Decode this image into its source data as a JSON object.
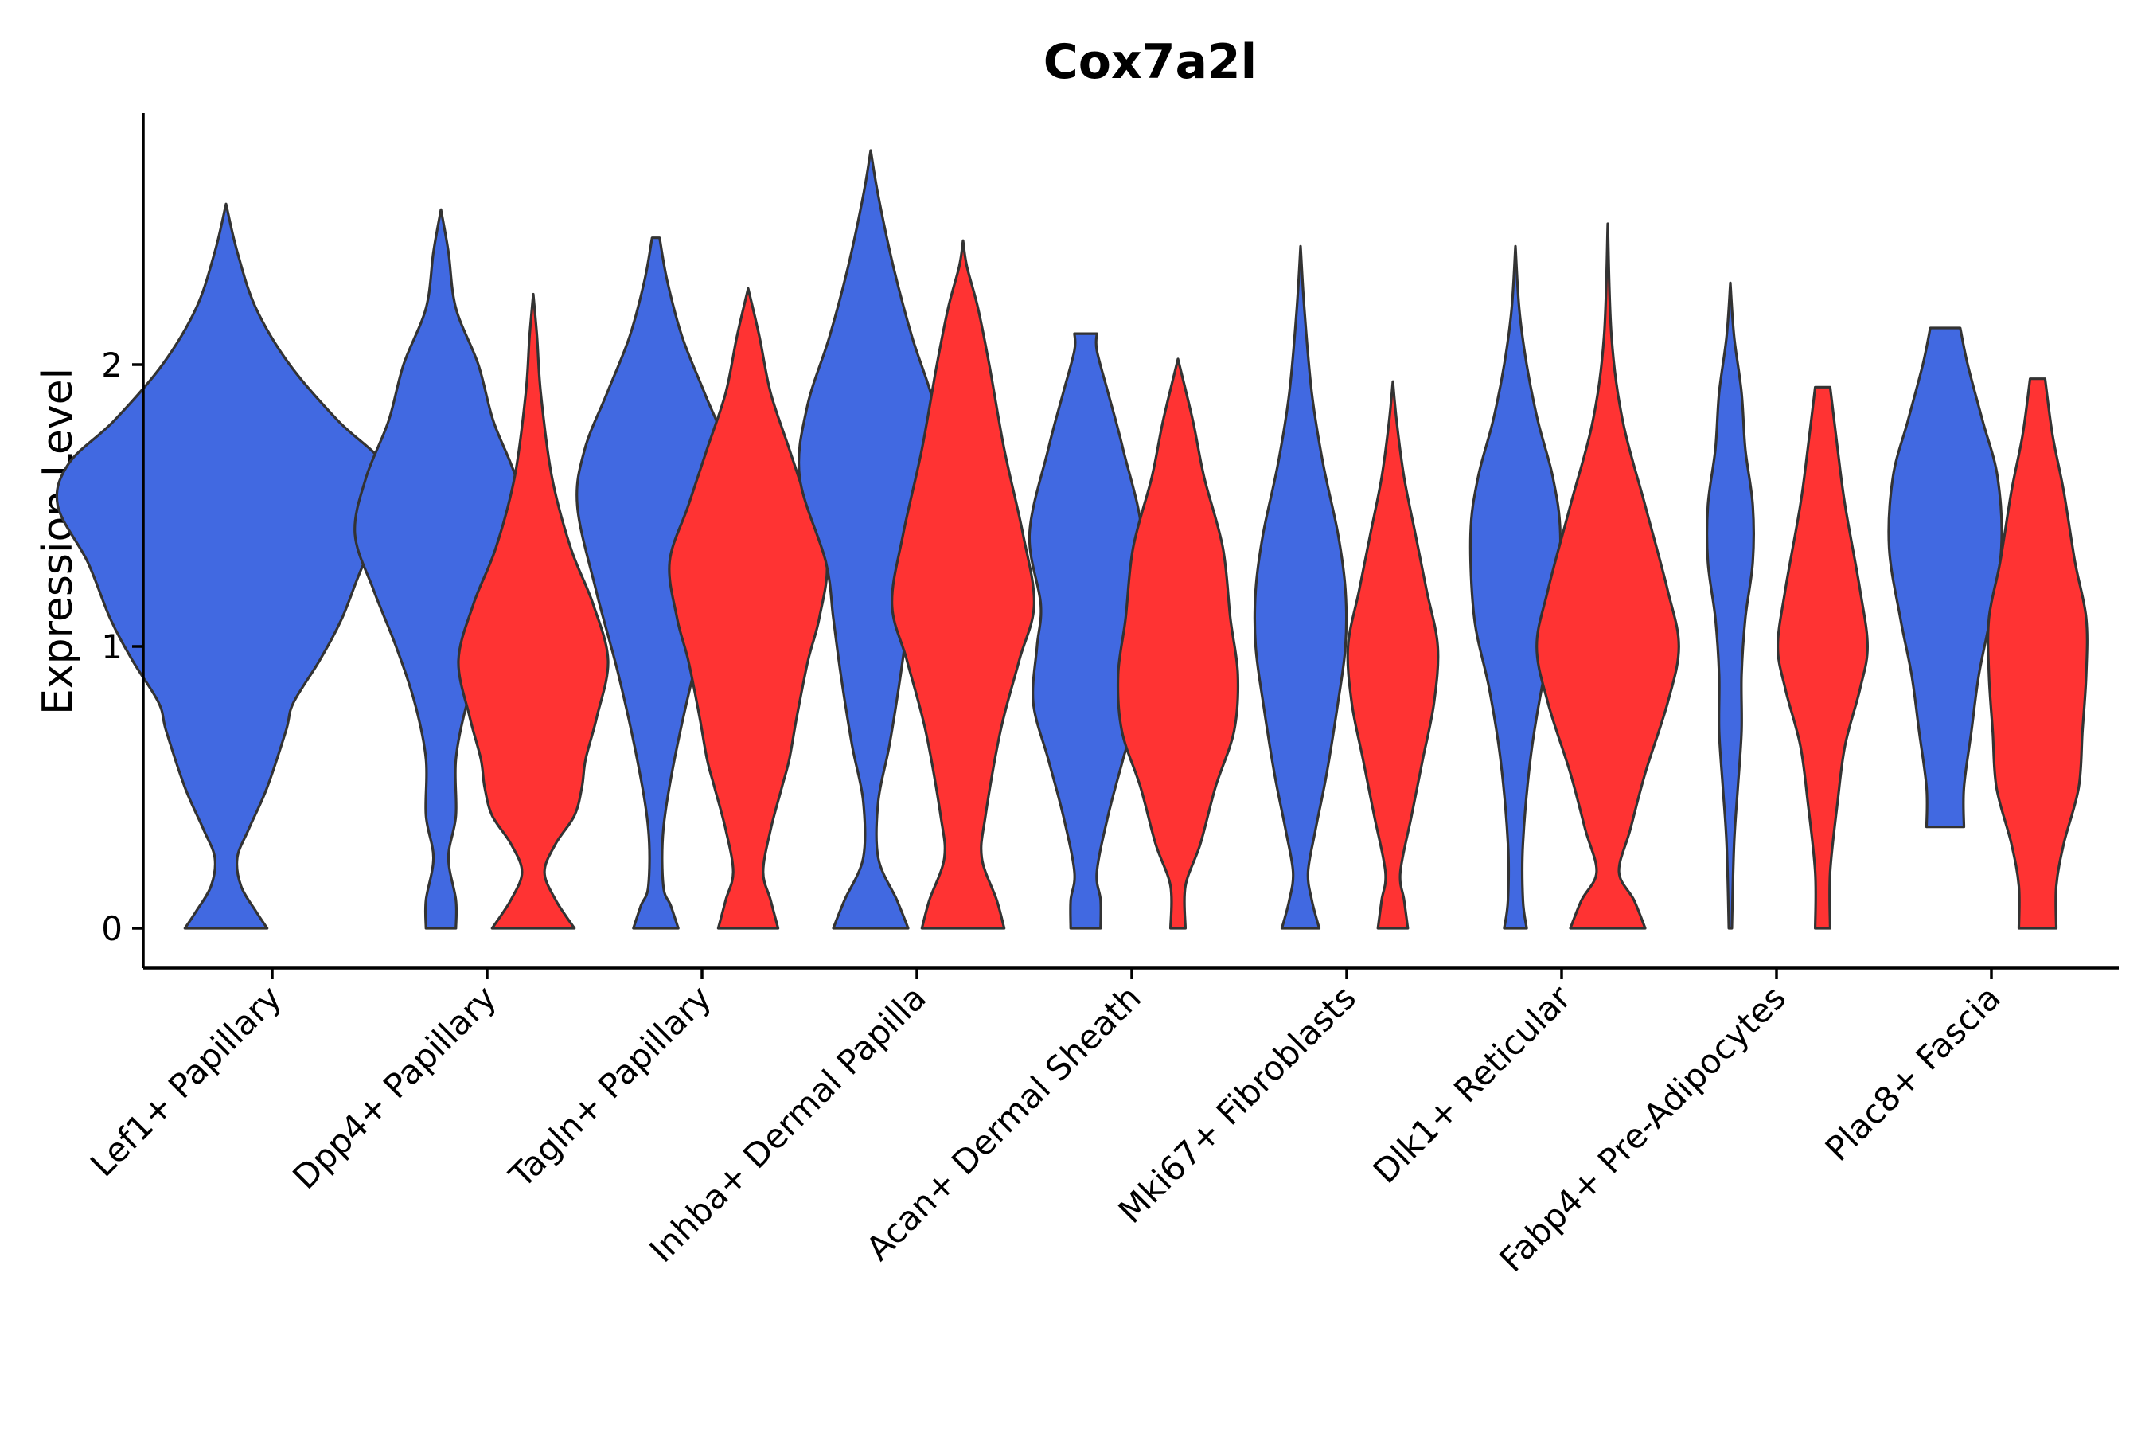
{
  "chart_data": {
    "type": "violin",
    "title": "Cox7a2l",
    "xlabel": "",
    "ylabel": "Expression Level",
    "ylim": [
      -0.14,
      2.88
    ],
    "yticks": [
      0,
      1,
      2
    ],
    "legend": "none",
    "grid": false,
    "colors": {
      "group_a": "#4169E1",
      "group_b": "#FF3333",
      "outline": "#333333"
    },
    "categories": [
      "Lef1+ Papillary",
      "Dpp4+ Papillary",
      "Tagln+ Papillary",
      "Inhba+ Dermal Papilla",
      "Acan+ Dermal Sheath",
      "Mki67+ Fibroblasts",
      "Dlk1+ Reticular",
      "Fabp4+ Pre-Adipocytes",
      "Plac8+ Fascia"
    ],
    "violins": [
      {
        "category": "Lef1+ Papillary",
        "group": "a",
        "profile": [
          [
            0,
            0.11
          ],
          [
            0.06,
            0.08
          ],
          [
            0.15,
            0.04
          ],
          [
            0.25,
            0.03
          ],
          [
            0.35,
            0.06
          ],
          [
            0.5,
            0.11
          ],
          [
            0.7,
            0.16
          ],
          [
            0.8,
            0.18
          ],
          [
            0.95,
            0.25
          ],
          [
            1.1,
            0.31
          ],
          [
            1.3,
            0.37
          ],
          [
            1.5,
            0.45
          ],
          [
            1.65,
            0.42
          ],
          [
            1.8,
            0.3
          ],
          [
            2.0,
            0.17
          ],
          [
            2.2,
            0.08
          ],
          [
            2.4,
            0.03
          ],
          [
            2.57,
            0
          ]
        ]
      },
      {
        "category": "Dpp4+ Papillary",
        "group": "a",
        "profile": [
          [
            0,
            0.04
          ],
          [
            0.1,
            0.04
          ],
          [
            0.25,
            0.02
          ],
          [
            0.4,
            0.04
          ],
          [
            0.6,
            0.04
          ],
          [
            0.8,
            0.07
          ],
          [
            1.0,
            0.12
          ],
          [
            1.2,
            0.18
          ],
          [
            1.4,
            0.23
          ],
          [
            1.6,
            0.2
          ],
          [
            1.8,
            0.14
          ],
          [
            2.0,
            0.1
          ],
          [
            2.2,
            0.04
          ],
          [
            2.4,
            0.02
          ],
          [
            2.55,
            0
          ]
        ]
      },
      {
        "category": "Dpp4+ Papillary",
        "group": "b",
        "profile": [
          [
            0,
            0.11
          ],
          [
            0.1,
            0.06
          ],
          [
            0.2,
            0.03
          ],
          [
            0.3,
            0.06
          ],
          [
            0.4,
            0.11
          ],
          [
            0.5,
            0.13
          ],
          [
            0.6,
            0.14
          ],
          [
            0.75,
            0.17
          ],
          [
            0.95,
            0.2
          ],
          [
            1.15,
            0.16
          ],
          [
            1.35,
            0.1
          ],
          [
            1.6,
            0.05
          ],
          [
            1.9,
            0.02
          ],
          [
            2.1,
            0.01
          ],
          [
            2.25,
            0
          ]
        ]
      },
      {
        "category": "Tagln+ Papillary",
        "group": "a",
        "profile": [
          [
            0,
            0.06
          ],
          [
            0.08,
            0.04
          ],
          [
            0.15,
            0.02
          ],
          [
            0.35,
            0.02
          ],
          [
            0.6,
            0.05
          ],
          [
            0.9,
            0.1
          ],
          [
            1.2,
            0.16
          ],
          [
            1.5,
            0.21
          ],
          [
            1.7,
            0.19
          ],
          [
            1.9,
            0.13
          ],
          [
            2.1,
            0.07
          ],
          [
            2.3,
            0.03
          ],
          [
            2.45,
            0.01
          ]
        ]
      },
      {
        "category": "Tagln+ Papillary",
        "group": "b",
        "profile": [
          [
            0,
            0.08
          ],
          [
            0.1,
            0.06
          ],
          [
            0.2,
            0.04
          ],
          [
            0.35,
            0.06
          ],
          [
            0.5,
            0.09
          ],
          [
            0.6,
            0.11
          ],
          [
            0.75,
            0.13
          ],
          [
            0.95,
            0.16
          ],
          [
            1.1,
            0.19
          ],
          [
            1.3,
            0.21
          ],
          [
            1.5,
            0.16
          ],
          [
            1.7,
            0.11
          ],
          [
            1.9,
            0.06
          ],
          [
            2.1,
            0.03
          ],
          [
            2.27,
            0
          ]
        ]
      },
      {
        "category": "Inhba+ Dermal Papilla",
        "group": "a",
        "profile": [
          [
            0,
            0.1
          ],
          [
            0.1,
            0.07
          ],
          [
            0.25,
            0.02
          ],
          [
            0.45,
            0.02
          ],
          [
            0.65,
            0.05
          ],
          [
            0.9,
            0.08
          ],
          [
            1.1,
            0.1
          ],
          [
            1.3,
            0.12
          ],
          [
            1.6,
            0.19
          ],
          [
            1.85,
            0.17
          ],
          [
            2.1,
            0.11
          ],
          [
            2.35,
            0.06
          ],
          [
            2.6,
            0.02
          ],
          [
            2.76,
            0
          ]
        ]
      },
      {
        "category": "Inhba+ Dermal Papilla",
        "group": "b",
        "profile": [
          [
            0,
            0.11
          ],
          [
            0.1,
            0.09
          ],
          [
            0.25,
            0.05
          ],
          [
            0.4,
            0.06
          ],
          [
            0.7,
            0.1
          ],
          [
            0.95,
            0.15
          ],
          [
            1.15,
            0.19
          ],
          [
            1.4,
            0.16
          ],
          [
            1.7,
            0.11
          ],
          [
            2.0,
            0.07
          ],
          [
            2.2,
            0.04
          ],
          [
            2.35,
            0.01
          ],
          [
            2.44,
            0
          ]
        ]
      },
      {
        "category": "Acan+ Dermal Sheath",
        "group": "a",
        "profile": [
          [
            0,
            0.04
          ],
          [
            0.1,
            0.04
          ],
          [
            0.2,
            0.03
          ],
          [
            0.4,
            0.06
          ],
          [
            0.6,
            0.1
          ],
          [
            0.8,
            0.14
          ],
          [
            1.0,
            0.13
          ],
          [
            1.15,
            0.12
          ],
          [
            1.4,
            0.15
          ],
          [
            1.7,
            0.1
          ],
          [
            1.9,
            0.06
          ],
          [
            2.05,
            0.03
          ],
          [
            2.11,
            0.03
          ]
        ]
      },
      {
        "category": "Acan+ Dermal Sheath",
        "group": "b",
        "profile": [
          [
            0,
            0.02
          ],
          [
            0.15,
            0.02
          ],
          [
            0.3,
            0.06
          ],
          [
            0.5,
            0.1
          ],
          [
            0.7,
            0.15
          ],
          [
            0.9,
            0.16
          ],
          [
            1.1,
            0.14
          ],
          [
            1.35,
            0.12
          ],
          [
            1.6,
            0.07
          ],
          [
            1.8,
            0.04
          ],
          [
            2.02,
            0
          ]
        ]
      },
      {
        "category": "Mki67+ Fibroblasts",
        "group": "a",
        "profile": [
          [
            0,
            0.05
          ],
          [
            0.1,
            0.03
          ],
          [
            0.2,
            0.02
          ],
          [
            0.35,
            0.04
          ],
          [
            0.55,
            0.07
          ],
          [
            0.8,
            0.1
          ],
          [
            1.0,
            0.12
          ],
          [
            1.2,
            0.12
          ],
          [
            1.4,
            0.1
          ],
          [
            1.65,
            0.06
          ],
          [
            1.9,
            0.03
          ],
          [
            2.2,
            0.01
          ],
          [
            2.42,
            0
          ]
        ]
      },
      {
        "category": "Mki67+ Fibroblasts",
        "group": "b",
        "profile": [
          [
            0,
            0.04
          ],
          [
            0.1,
            0.03
          ],
          [
            0.2,
            0.02
          ],
          [
            0.4,
            0.05
          ],
          [
            0.6,
            0.08
          ],
          [
            0.8,
            0.11
          ],
          [
            1.0,
            0.12
          ],
          [
            1.2,
            0.09
          ],
          [
            1.4,
            0.06
          ],
          [
            1.6,
            0.03
          ],
          [
            1.8,
            0.01
          ],
          [
            1.94,
            0
          ]
        ]
      },
      {
        "category": "Dlk1+ Reticular",
        "group": "a",
        "profile": [
          [
            0,
            0.03
          ],
          [
            0.1,
            0.02
          ],
          [
            0.3,
            0.02
          ],
          [
            0.6,
            0.04
          ],
          [
            0.85,
            0.07
          ],
          [
            1.1,
            0.11
          ],
          [
            1.4,
            0.12
          ],
          [
            1.6,
            0.1
          ],
          [
            1.8,
            0.06
          ],
          [
            2.0,
            0.03
          ],
          [
            2.2,
            0.01
          ],
          [
            2.42,
            0
          ]
        ]
      },
      {
        "category": "Dlk1+ Reticular",
        "group": "b",
        "profile": [
          [
            0,
            0.1
          ],
          [
            0.1,
            0.07
          ],
          [
            0.2,
            0.03
          ],
          [
            0.35,
            0.06
          ],
          [
            0.55,
            0.1
          ],
          [
            0.8,
            0.16
          ],
          [
            1.0,
            0.19
          ],
          [
            1.2,
            0.16
          ],
          [
            1.5,
            0.1
          ],
          [
            1.8,
            0.04
          ],
          [
            2.1,
            0.01
          ],
          [
            2.5,
            0
          ]
        ]
      },
      {
        "category": "Fabp4+ Pre-Adipocytes",
        "group": "a",
        "profile": [
          [
            0,
            0.004
          ],
          [
            0.3,
            0.01
          ],
          [
            0.5,
            0.02
          ],
          [
            0.7,
            0.03
          ],
          [
            0.9,
            0.03
          ],
          [
            1.1,
            0.04
          ],
          [
            1.3,
            0.06
          ],
          [
            1.5,
            0.06
          ],
          [
            1.7,
            0.04
          ],
          [
            1.9,
            0.03
          ],
          [
            2.1,
            0.01
          ],
          [
            2.29,
            0
          ]
        ]
      },
      {
        "category": "Fabp4+ Pre-Adipocytes",
        "group": "b",
        "profile": [
          [
            0,
            0.02
          ],
          [
            0.2,
            0.02
          ],
          [
            0.45,
            0.04
          ],
          [
            0.65,
            0.06
          ],
          [
            0.85,
            0.1
          ],
          [
            1.0,
            0.12
          ],
          [
            1.2,
            0.1
          ],
          [
            1.5,
            0.06
          ],
          [
            1.7,
            0.04
          ],
          [
            1.92,
            0.02
          ]
        ]
      },
      {
        "category": "Plac8+ Fascia",
        "group": "a",
        "profile": [
          [
            0.36,
            0.05
          ],
          [
            0.5,
            0.05
          ],
          [
            0.7,
            0.07
          ],
          [
            0.9,
            0.09
          ],
          [
            1.1,
            0.12
          ],
          [
            1.35,
            0.15
          ],
          [
            1.6,
            0.14
          ],
          [
            1.8,
            0.1
          ],
          [
            2.0,
            0.06
          ],
          [
            2.13,
            0.04
          ]
        ]
      },
      {
        "category": "Plac8+ Fascia",
        "group": "b",
        "profile": [
          [
            0,
            0.05
          ],
          [
            0.15,
            0.05
          ],
          [
            0.3,
            0.07
          ],
          [
            0.5,
            0.11
          ],
          [
            0.7,
            0.12
          ],
          [
            0.9,
            0.13
          ],
          [
            1.1,
            0.13
          ],
          [
            1.3,
            0.1
          ],
          [
            1.55,
            0.07
          ],
          [
            1.75,
            0.04
          ],
          [
            1.95,
            0.02
          ]
        ]
      }
    ]
  }
}
